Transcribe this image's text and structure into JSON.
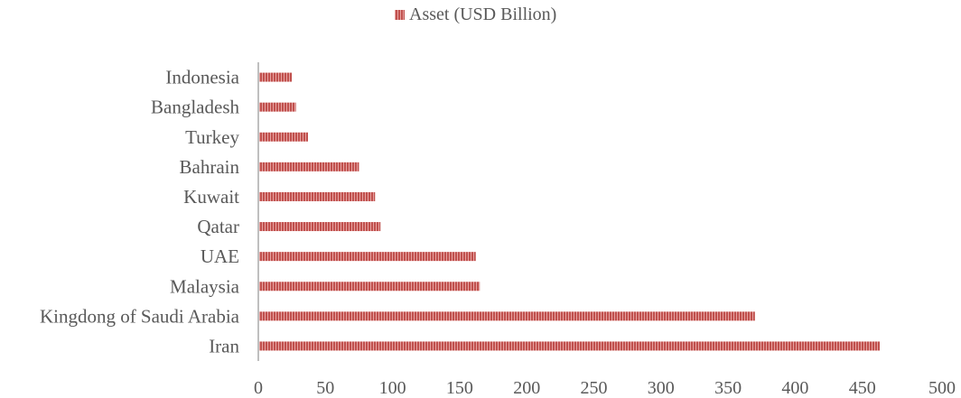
{
  "chart_data": {
    "type": "bar",
    "orientation": "horizontal",
    "categories": [
      "Indonesia",
      "Bangladesh",
      "Turkey",
      "Bahrain",
      "Kuwait",
      "Qatar",
      "UAE",
      "Malaysia",
      "Kingdong of Saudi Arabia",
      "Iran"
    ],
    "series": [
      {
        "name": "Asset (USD Billion)",
        "values": [
          25,
          28,
          37,
          75,
          87,
          91,
          162,
          165,
          370,
          463
        ]
      }
    ],
    "xlim": [
      0,
      500
    ],
    "xticks": [
      0,
      50,
      100,
      150,
      200,
      250,
      300,
      350,
      400,
      450,
      500
    ],
    "legend_position": "top",
    "grid": false,
    "colors": {
      "bar": "#c0504d",
      "bar_stripe": "#e6a3a1",
      "axis": "#bfbfbf",
      "text": "#595959"
    }
  }
}
